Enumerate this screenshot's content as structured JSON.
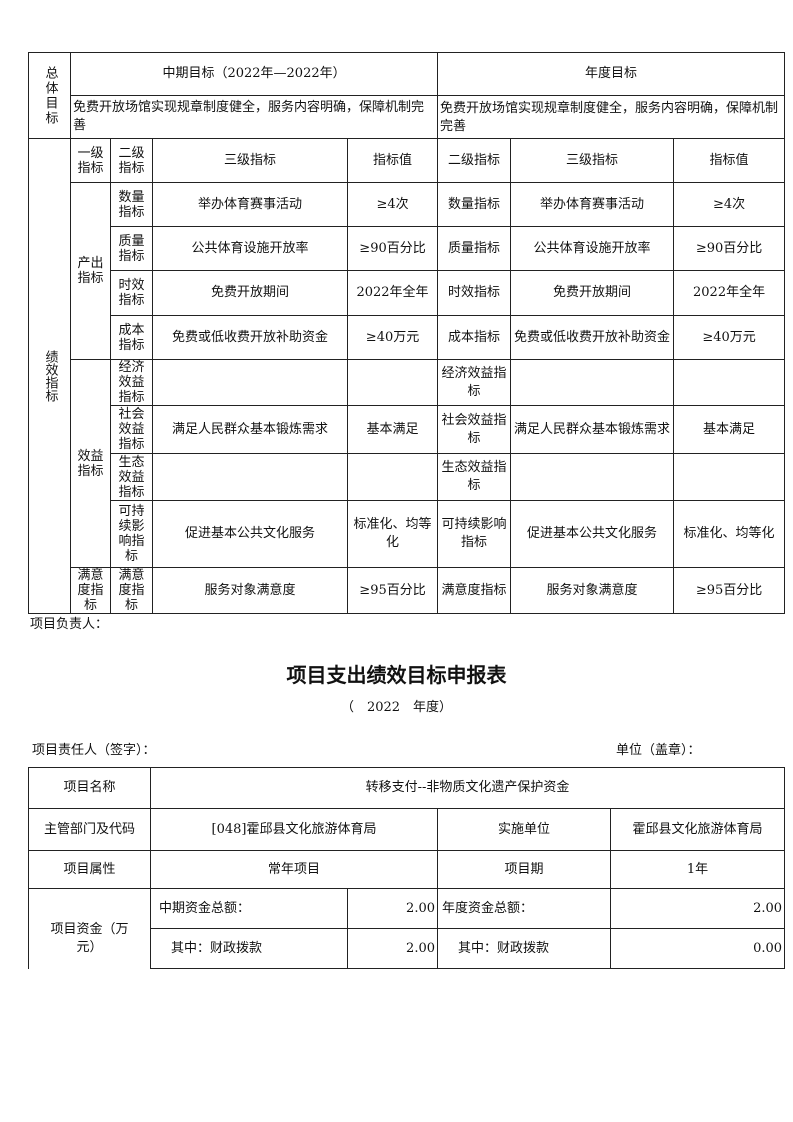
{
  "goal_table": {
    "overall_label": "总体目标",
    "mid_term_header": "中期目标（2022年—2022年）",
    "annual_header": "年度目标",
    "mid_term_text": "免费开放场馆实现规章制度健全，服务内容明确，保障机制完善",
    "annual_text": "免费开放场馆实现规章制度健全，服务内容明确，保障机制完善",
    "performance_label": "绩效指标",
    "headers": [
      "一级指标",
      "二级指标",
      "三级指标",
      "指标值",
      "二级指标",
      "三级指标",
      "指标值"
    ],
    "output_label": "产出指标",
    "benefit_label": "效益指标",
    "satisfaction_label": "满意度指标",
    "rows": [
      {
        "l2": "数量指标",
        "l3": "举办体育赛事活动",
        "val": "≥4次",
        "a_l2": "数量指标",
        "a_l3": "举办体育赛事活动",
        "a_val": "≥4次"
      },
      {
        "l2": "质量指标",
        "l3": "公共体育设施开放率",
        "val": "≥90百分比",
        "a_l2": "质量指标",
        "a_l3": "公共体育设施开放率",
        "a_val": "≥90百分比"
      },
      {
        "l2": "时效指标",
        "l3": "免费开放期间",
        "val": "2022年全年",
        "a_l2": "时效指标",
        "a_l3": "免费开放期间",
        "a_val": "2022年全年"
      },
      {
        "l2": "成本指标",
        "l3": "免费或低收费开放补助资金",
        "val": "≥40万元",
        "a_l2": "成本指标",
        "a_l3": "免费或低收费开放补助资金",
        "a_val": "≥40万元"
      },
      {
        "l2": "经济效益指标",
        "l3": "",
        "val": "",
        "a_l2": "经济效益指标",
        "a_l3": "",
        "a_val": ""
      },
      {
        "l2": "社会效益指标",
        "l3": "满足人民群众基本锻炼需求",
        "val": "基本满足",
        "a_l2": "社会效益指标",
        "a_l3": "满足人民群众基本锻炼需求",
        "a_val": "基本满足"
      },
      {
        "l2": "生态效益指标",
        "l3": "",
        "val": "",
        "a_l2": "生态效益指标",
        "a_l3": "",
        "a_val": ""
      },
      {
        "l2": "可持续影响指标",
        "l3": "促进基本公共文化服务",
        "val": "标准化、均等化",
        "a_l2": "可持续影响指标",
        "a_l3": "促进基本公共文化服务",
        "a_val": "标准化、均等化"
      },
      {
        "l2": "满意度指标",
        "l3": "服务对象满意度",
        "val": "≥95百分比",
        "a_l2": "满意度指标",
        "a_l3": "服务对象满意度",
        "a_val": "≥95百分比"
      }
    ]
  },
  "responsible_person": "项目负责人：",
  "form": {
    "title": "项目支出绩效目标申报表",
    "year_line": "（　2022　年度）",
    "signer_label": "项目责任人（签字）：",
    "unit_label": "单位（盖章）：",
    "project_name_label": "项目名称",
    "project_name": "转移支付--非物质文化遗产保护资金",
    "dept_label": "主管部门及代码",
    "dept": "[048]霍邱县文化旅游体育局",
    "impl_label": "实施单位",
    "impl": "霍邱县文化旅游体育局",
    "attr_label": "项目属性",
    "attr": "常年项目",
    "period_label": "项目期",
    "period": "1年",
    "funds_label": "项目资金（万元）",
    "mid_total_label": "中期资金总额：",
    "mid_total": "2.00",
    "annual_total_label": "年度资金总额：",
    "annual_total": "2.00",
    "mid_fiscal_label": "其中：财政拨款",
    "mid_fiscal": "2.00",
    "annual_fiscal_label": "其中：财政拨款",
    "annual_fiscal": "0.00"
  }
}
